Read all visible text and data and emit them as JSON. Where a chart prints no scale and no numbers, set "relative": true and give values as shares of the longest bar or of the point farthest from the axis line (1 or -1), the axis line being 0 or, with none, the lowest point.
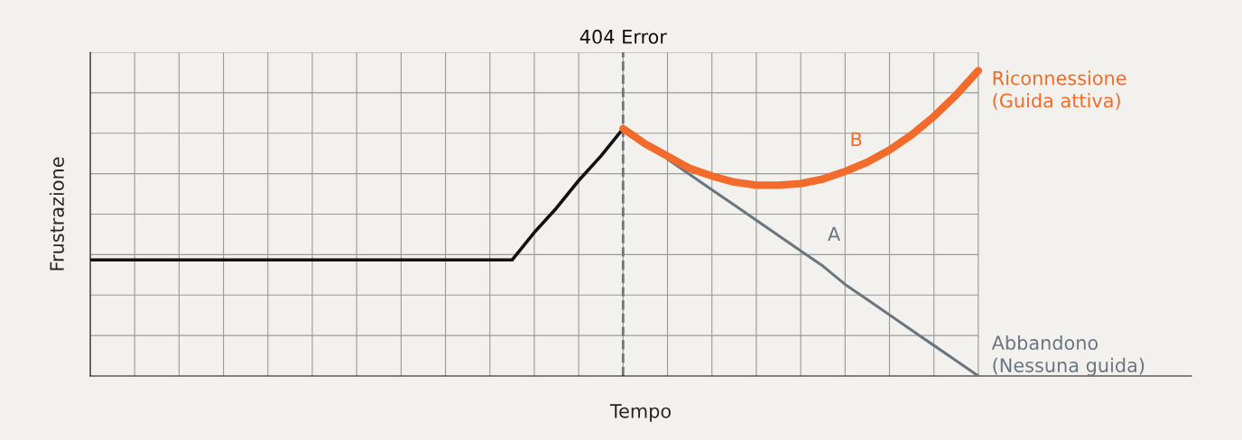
{
  "chart_data": {
    "type": "line",
    "relative": true,
    "xlabel": "Tempo",
    "ylabel": "Frustrazione",
    "grid": true,
    "categories": [
      null,
      null,
      null,
      null,
      null,
      null,
      null,
      null,
      null,
      null,
      null,
      null,
      null,
      null,
      null,
      null,
      null,
      null,
      null,
      null,
      null,
      null,
      null,
      null,
      null,
      null,
      null,
      null,
      null,
      null,
      null,
      null,
      null,
      null,
      null,
      null,
      null,
      null,
      null,
      null,
      null
    ],
    "series": [
      {
        "color": "#111111",
        "values": [
          0.38,
          0.38,
          0.38,
          0.38,
          0.38,
          0.38,
          0.38,
          0.38,
          0.38,
          0.38,
          0.38,
          0.38,
          0.38,
          0.38,
          0.38,
          0.38,
          0.38,
          0.38,
          0.38,
          0.38,
          0.47,
          0.55,
          0.64,
          0.72,
          0.81,
          null,
          null,
          null,
          null,
          null,
          null,
          null,
          null,
          null,
          null,
          null,
          null,
          null,
          null,
          null,
          null
        ]
      },
      {
        "name": "Abbandono\n(Nessuna guida)",
        "color": "#6b7580",
        "values": [
          null,
          null,
          null,
          null,
          null,
          null,
          null,
          null,
          null,
          null,
          null,
          null,
          null,
          null,
          null,
          null,
          null,
          null,
          null,
          null,
          null,
          null,
          null,
          null,
          null,
          null,
          0.71,
          0.66,
          0.61,
          0.56,
          0.51,
          0.46,
          0.41,
          0.36,
          0.3,
          0.25,
          0.2,
          0.15,
          0.1,
          0.05,
          0
        ]
      },
      {
        "name": "Riconnessione\n(Guida attiva)",
        "color": "#f26b2a",
        "values": [
          null,
          null,
          null,
          null,
          null,
          null,
          null,
          null,
          null,
          null,
          null,
          null,
          null,
          null,
          null,
          null,
          null,
          null,
          null,
          null,
          null,
          null,
          null,
          null,
          0.81,
          0.76,
          0.72,
          0.68,
          0.655,
          0.635,
          0.625,
          0.625,
          0.63,
          0.645,
          0.67,
          0.7,
          0.74,
          0.79,
          0.85,
          0.92,
          1
        ]
      }
    ],
    "annotations": [
      "A",
      "B",
      "404 Error"
    ]
  }
}
